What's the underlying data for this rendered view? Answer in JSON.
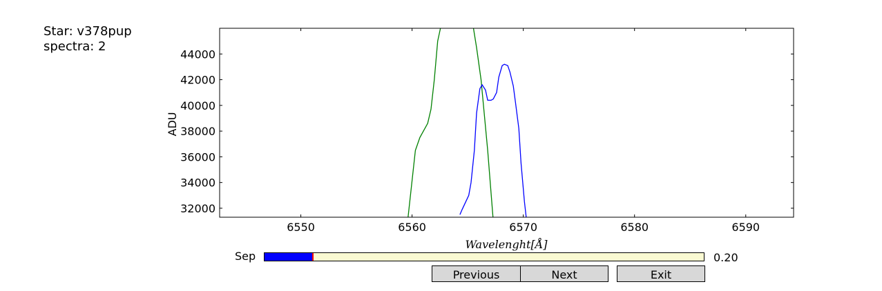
{
  "info": {
    "star_line": "Star: v378pup",
    "spectra_line": "spectra: 2"
  },
  "chart_data": {
    "type": "line",
    "xlabel": "Wavelenght[Å]",
    "ylabel": "ADU",
    "xlim": [
      6542.7,
      6594.3
    ],
    "ylim": [
      31300,
      46000
    ],
    "x_ticks": [
      6550,
      6560,
      6570,
      6580,
      6590
    ],
    "y_ticks": [
      32000,
      34000,
      36000,
      38000,
      40000,
      42000,
      44000
    ],
    "grid": false,
    "series": [
      {
        "color": "#008000",
        "x": [
          6559.6,
          6560.3,
          6560.7,
          6561.4,
          6561.7,
          6562.0,
          6562.3,
          6562.6,
          6563.3,
          6564.3,
          6565.5,
          6565.8,
          6566.2,
          6566.8,
          6567.3
        ],
        "y": [
          31000,
          36500,
          37500,
          38600,
          39700,
          42000,
          45000,
          46200,
          47000,
          47000,
          46100,
          44500,
          42000,
          36500,
          31000
        ]
      },
      {
        "color": "#0000ff",
        "x": [
          6564.3,
          6564.5,
          6565.1,
          6565.3,
          6565.6,
          6565.8,
          6566.1,
          6566.3,
          6566.6,
          6566.8,
          6567.1,
          6567.3,
          6567.6,
          6567.8,
          6568.1,
          6568.3,
          6568.6,
          6568.8,
          6569.1,
          6569.3,
          6569.6,
          6569.8,
          6570.1,
          6570.3
        ],
        "y": [
          31500,
          31900,
          33000,
          34000,
          36500,
          39400,
          41300,
          41600,
          41200,
          40400,
          40400,
          40500,
          41000,
          42200,
          43100,
          43200,
          43100,
          42600,
          41500,
          40200,
          38200,
          35500,
          32500,
          31000
        ]
      }
    ]
  },
  "slider": {
    "label": "Sep",
    "value_text": "0.20",
    "fraction": 0.11,
    "fill_color": "#0000ff",
    "track_color": "#fafad2"
  },
  "buttons": {
    "previous": "Previous",
    "next": "Next",
    "exit": "Exit"
  }
}
